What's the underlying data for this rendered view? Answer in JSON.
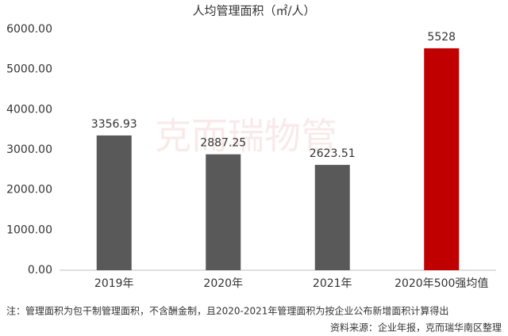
{
  "chart_data": {
    "type": "bar",
    "title": "人均管理面积（㎡/人）",
    "categories": [
      "2019年",
      "2020年",
      "2021年",
      "2020年500强均值"
    ],
    "values": [
      3356.93,
      2887.25,
      2623.51,
      5528
    ],
    "colors": [
      "#595959",
      "#595959",
      "#595959",
      "#c00000"
    ],
    "ylim": [
      0,
      6000
    ],
    "yticks": [
      {
        "value": 0,
        "label": "0.00"
      },
      {
        "value": 1000,
        "label": "1000.00"
      },
      {
        "value": 2000,
        "label": "2000.00"
      },
      {
        "value": 3000,
        "label": "3000.00"
      },
      {
        "value": 4000,
        "label": "4000.00"
      },
      {
        "value": 5000,
        "label": "5000.00"
      },
      {
        "value": 6000,
        "label": "6000.00"
      }
    ],
    "grid": false,
    "watermark": "克而瑞物管",
    "note": "注：管理面积为包干制管理面积，不含酬金制，且2020-2021年管理面积为按企业公布新增面积计算得出",
    "source": "资料来源：企业年报，克而瑞华南区整理"
  }
}
